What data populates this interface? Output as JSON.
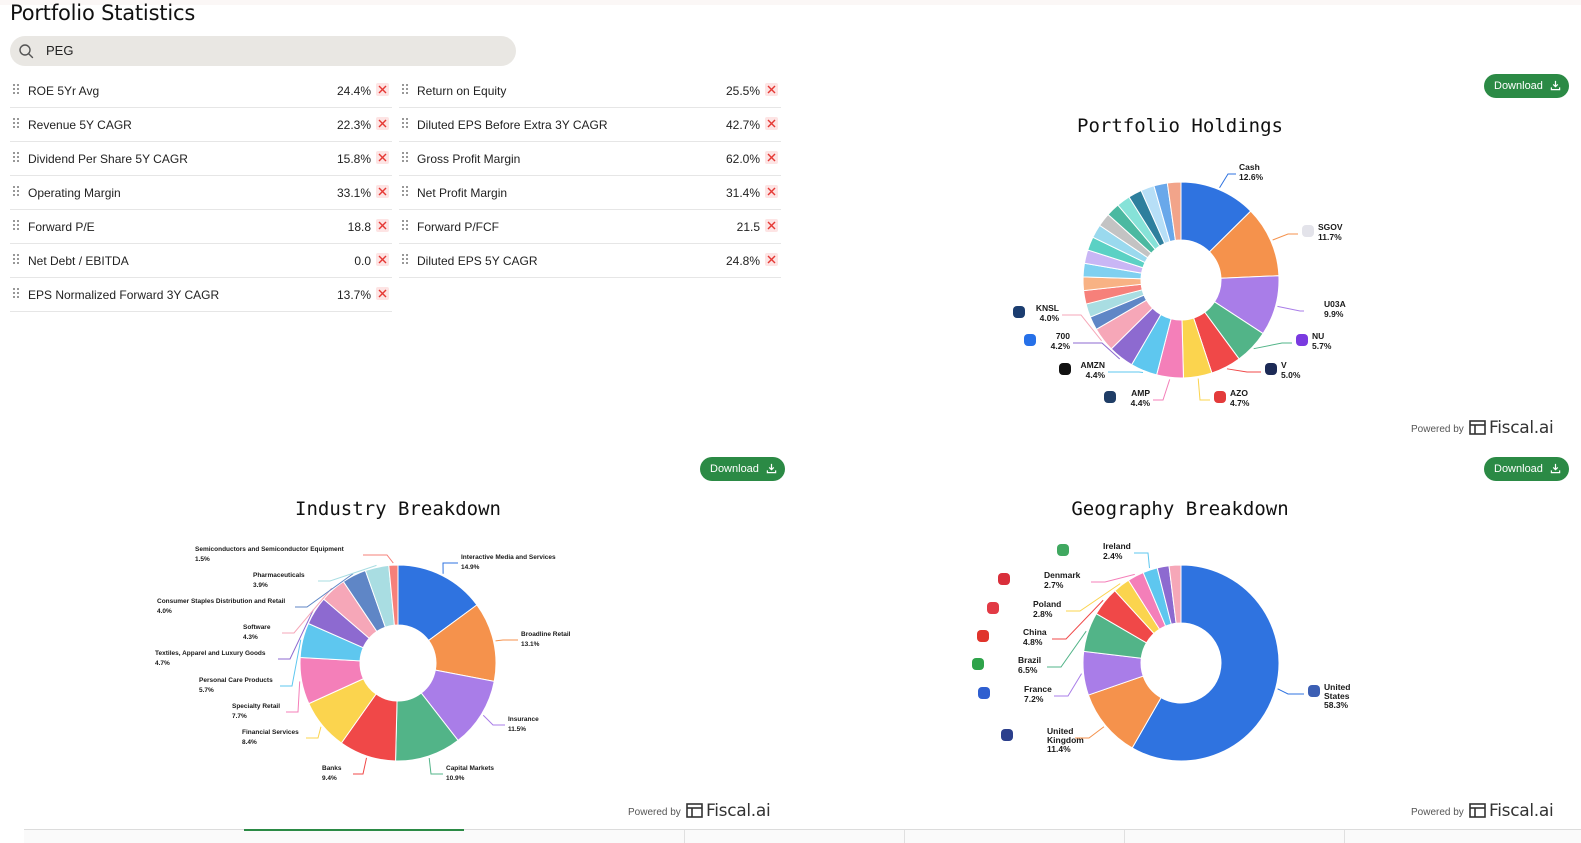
{
  "page": {
    "title": "Portfolio Statistics"
  },
  "search": {
    "value": "PEG"
  },
  "stats_left": [
    {
      "label": "ROE 5Yr Avg",
      "value": "24.4%"
    },
    {
      "label": "Revenue 5Y CAGR",
      "value": "22.3%"
    },
    {
      "label": "Dividend Per Share 5Y CAGR",
      "value": "15.8%"
    },
    {
      "label": "Operating Margin",
      "value": "33.1%"
    },
    {
      "label": "Forward P/E",
      "value": "18.8"
    },
    {
      "label": "Net Debt / EBITDA",
      "value": "0.0"
    },
    {
      "label": "EPS Normalized Forward 3Y CAGR",
      "value": "13.7%"
    }
  ],
  "stats_right": [
    {
      "label": "Return on Equity",
      "value": "25.5%"
    },
    {
      "label": "Diluted EPS Before Extra 3Y CAGR",
      "value": "42.7%"
    },
    {
      "label": "Gross Profit Margin",
      "value": "62.0%"
    },
    {
      "label": "Net Profit Margin",
      "value": "31.4%"
    },
    {
      "label": "Forward P/FCF",
      "value": "21.5"
    },
    {
      "label": "Diluted EPS 5Y CAGR",
      "value": "24.8%"
    }
  ],
  "download_label": "Download",
  "powered_by": "Powered by",
  "brand": "Fiscal.ai",
  "colors": {
    "accent": "#2b8a45",
    "remove_bg": "#fde4e4",
    "remove_x": "#e53935"
  },
  "chart_data": [
    {
      "type": "pie",
      "title": "Portfolio Holdings",
      "donut": true,
      "labeled_slices": [
        {
          "label": "Cash",
          "value": 12.6,
          "color": "#2f73e0"
        },
        {
          "label": "SGOV",
          "value": 11.7,
          "color": "#f5924c"
        },
        {
          "label": "U03A",
          "value": 9.9,
          "color": "#a97de8"
        },
        {
          "label": "NU",
          "value": 5.7,
          "color": "#52b488"
        },
        {
          "label": "V",
          "value": 5.0,
          "color": "#f04848"
        },
        {
          "label": "AZO",
          "value": 4.7,
          "color": "#fbd44e"
        },
        {
          "label": "AMP",
          "value": 4.4,
          "color": "#f47fb9"
        },
        {
          "label": "AMZN",
          "value": 4.4,
          "color": "#5ec7ef"
        },
        {
          "label": "700",
          "value": 4.2,
          "color": "#8d6ad0"
        },
        {
          "label": "KNSL",
          "value": 4.0,
          "color": "#f6a7b8"
        }
      ],
      "other_slice_colors": [
        "#5f86c6",
        "#a9dde2",
        "#f6807a",
        "#f8b284",
        "#7fd0f0",
        "#c9b6f5",
        "#5bd1c4",
        "#9ad9ee",
        "#c3c3c3",
        "#4bb9a1",
        "#86e2d8",
        "#2e7f9d",
        "#b7dff7",
        "#69a8ea",
        "#f2a48a"
      ]
    },
    {
      "type": "pie",
      "title": "Industry Breakdown",
      "donut": true,
      "slices": [
        {
          "label": "Interactive Media and Services",
          "value": 14.9,
          "color": "#2f73e0"
        },
        {
          "label": "Broadline Retail",
          "value": 13.1,
          "color": "#f5924c"
        },
        {
          "label": "Insurance",
          "value": 11.5,
          "color": "#a97de8"
        },
        {
          "label": "Capital Markets",
          "value": 10.9,
          "color": "#52b488"
        },
        {
          "label": "Banks",
          "value": 9.4,
          "color": "#f04848"
        },
        {
          "label": "Financial Services",
          "value": 8.4,
          "color": "#fbd44e"
        },
        {
          "label": "Specialty Retail",
          "value": 7.7,
          "color": "#f47fb9"
        },
        {
          "label": "Personal Care Products",
          "value": 5.7,
          "color": "#5ec7ef"
        },
        {
          "label": "Textiles, Apparel and Luxury Goods",
          "value": 4.7,
          "color": "#8d6ad0"
        },
        {
          "label": "Software",
          "value": 4.3,
          "color": "#f6a7b8"
        },
        {
          "label": "Consumer Staples Distribution and Retail",
          "value": 4.0,
          "color": "#5f86c6"
        },
        {
          "label": "Pharmaceuticals",
          "value": 3.9,
          "color": "#a9dde2"
        },
        {
          "label": "Semiconductors and Semiconductor Equipment",
          "value": 1.5,
          "color": "#f6807a"
        }
      ]
    },
    {
      "type": "pie",
      "title": "Geography Breakdown",
      "donut": true,
      "slices": [
        {
          "label": "United States",
          "value": 58.3,
          "color": "#2f73e0"
        },
        {
          "label": "United Kingdom",
          "value": 11.4,
          "color": "#f5924c"
        },
        {
          "label": "France",
          "value": 7.2,
          "color": "#a97de8"
        },
        {
          "label": "Brazil",
          "value": 6.5,
          "color": "#52b488"
        },
        {
          "label": "China",
          "value": 4.8,
          "color": "#f04848"
        },
        {
          "label": "Poland",
          "value": 2.8,
          "color": "#fbd44e"
        },
        {
          "label": "Denmark",
          "value": 2.7,
          "color": "#f47fb9"
        },
        {
          "label": "Ireland",
          "value": 2.4,
          "color": "#5ec7ef"
        }
      ],
      "other_slice_colors": [
        "#8d6ad0",
        "#f6a7b8"
      ]
    }
  ]
}
